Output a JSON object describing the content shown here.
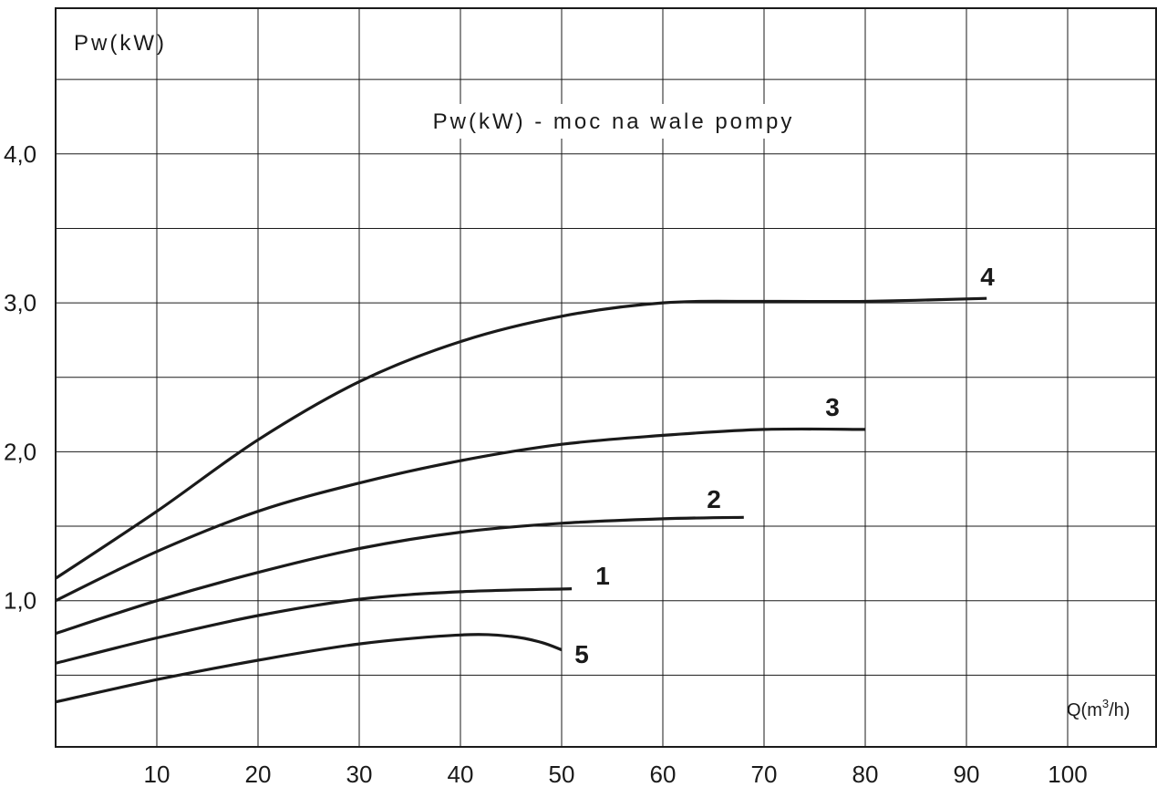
{
  "chart_data": {
    "type": "line",
    "title": "Pw(kW) - moc na wale pompy",
    "ylabel": "Pw(kW)",
    "xlabel": {
      "prefix": "Q(m",
      "sup": "3",
      "suffix": "/h)"
    },
    "xlim": [
      0,
      110
    ],
    "ylim": [
      0,
      5
    ],
    "x_ticks": [
      "10",
      "20",
      "30",
      "40",
      "50",
      "60",
      "70",
      "80",
      "90",
      "100"
    ],
    "y_ticks": [
      "1,0",
      "2,0",
      "3,0",
      "4,0"
    ],
    "grid": true,
    "series": [
      {
        "name": "4",
        "x": [
          0,
          10,
          20,
          30,
          40,
          50,
          60,
          70,
          80,
          92
        ],
        "y": [
          1.15,
          1.6,
          2.08,
          2.47,
          2.74,
          2.91,
          3.0,
          3.01,
          3.01,
          3.03
        ]
      },
      {
        "name": "3",
        "x": [
          0,
          10,
          20,
          30,
          40,
          50,
          60,
          70,
          80
        ],
        "y": [
          1.0,
          1.33,
          1.6,
          1.79,
          1.94,
          2.05,
          2.11,
          2.15,
          2.15
        ]
      },
      {
        "name": "2",
        "x": [
          0,
          10,
          20,
          30,
          40,
          50,
          60,
          68
        ],
        "y": [
          0.78,
          1.0,
          1.19,
          1.35,
          1.46,
          1.52,
          1.55,
          1.56
        ]
      },
      {
        "name": "1",
        "x": [
          0,
          10,
          20,
          30,
          40,
          51
        ],
        "y": [
          0.58,
          0.75,
          0.9,
          1.01,
          1.06,
          1.08
        ]
      },
      {
        "name": "5",
        "x": [
          0,
          10,
          20,
          30,
          40,
          45,
          48,
          50
        ],
        "y": [
          0.32,
          0.47,
          0.6,
          0.71,
          0.77,
          0.76,
          0.72,
          0.67
        ]
      }
    ],
    "colors": {
      "line": "#1a1a1a",
      "grid": "#1a1a1a",
      "background": "#ffffff"
    }
  }
}
